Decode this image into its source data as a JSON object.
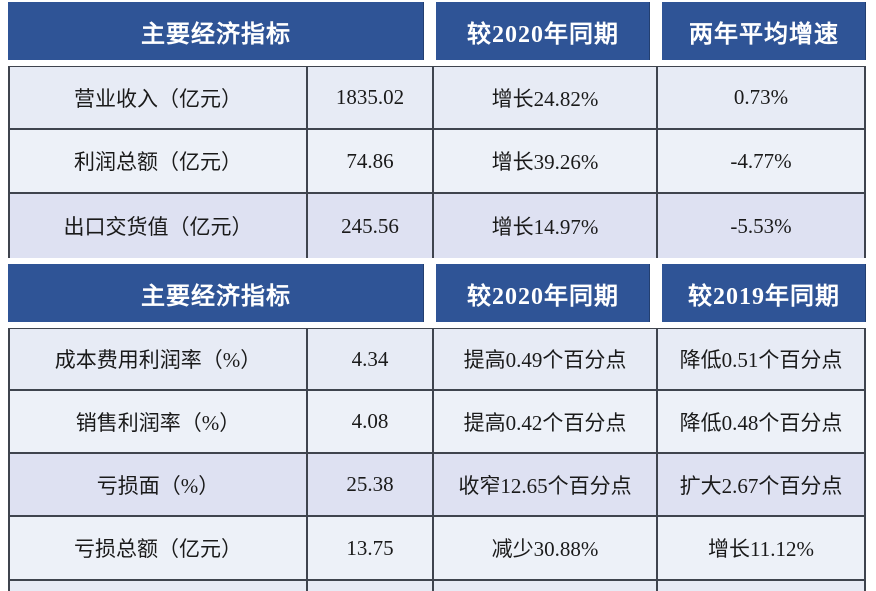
{
  "colors": {
    "header_bg": "#2F5496",
    "header_text": "#FFFFFF",
    "row_shade_medium": "#E7EBF5",
    "row_shade_light": "#EDF1F8",
    "row_shade_dark": "#DEE1F2",
    "grid_line": "#3F444E",
    "body_text": "#1A1A1A",
    "page_bg": "#FFFFFF"
  },
  "chart_data": [
    {
      "type": "table",
      "title": "主要经济指标（第一部分）",
      "columns": [
        "主要经济指标",
        "较2020年同期",
        "两年平均增速"
      ],
      "header_col_spans": [
        2,
        1,
        1
      ],
      "rows": [
        [
          "营业收入（亿元）",
          "1835.02",
          "增长24.82%",
          "0.73%"
        ],
        [
          "利润总额（亿元）",
          "74.86",
          "增长39.26%",
          "-4.77%"
        ],
        [
          "出口交货值（亿元）",
          "245.56",
          "增长14.97%",
          "-5.53%"
        ]
      ]
    },
    {
      "type": "table",
      "title": "主要经济指标（第二部分）",
      "columns": [
        "主要经济指标",
        "较2020年同期",
        "较2019年同期"
      ],
      "header_col_spans": [
        2,
        1,
        1
      ],
      "rows": [
        [
          "成本费用利润率（%）",
          "4.34",
          "提高0.49个百分点",
          "降低0.51个百分点"
        ],
        [
          "销售利润率（%）",
          "4.08",
          "提高0.42个百分点",
          "降低0.48个百分点"
        ],
        [
          "亏损面（%）",
          "25.38",
          "收窄12.65个百分点",
          "扩大2.67个百分点"
        ],
        [
          "亏损总额（亿元）",
          "13.75",
          "减少30.88%",
          "增长11.12%"
        ]
      ]
    }
  ]
}
